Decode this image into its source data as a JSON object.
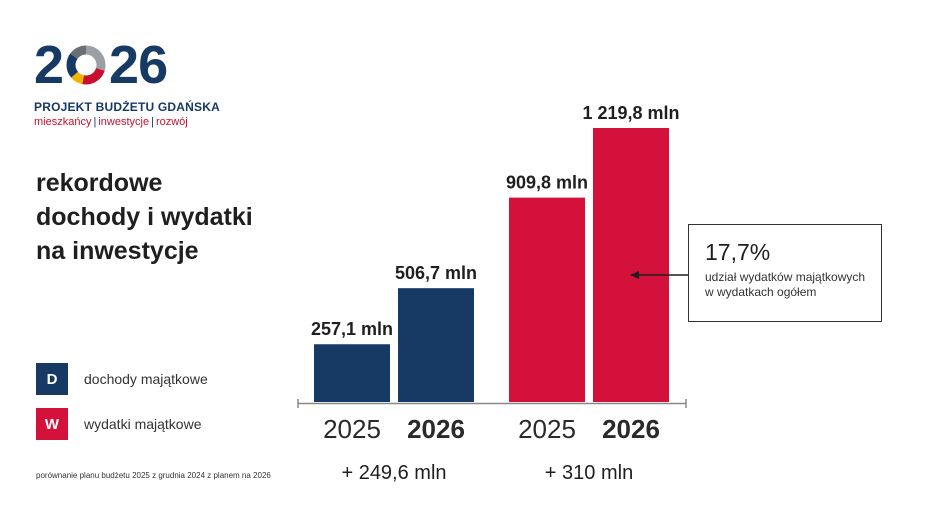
{
  "logo": {
    "digit_2a": "2",
    "digits_26": "26",
    "subtitle": "PROJEKT BUDŻETU GDAŃSKA",
    "tags": [
      "mieszkańcy",
      "inwestycje",
      "rozwój"
    ]
  },
  "headline": [
    "rekordowe",
    "dochody i wydatki",
    "na inwestycje"
  ],
  "legend": [
    {
      "letter": "D",
      "label": "dochody majątkowe",
      "color": "#163a63"
    },
    {
      "letter": "W",
      "label": "wydatki majątkowe",
      "color": "#d4113b"
    }
  ],
  "footnote": "porównanie planu budżetu 2025 z grudnia 2024 z planem na 2026",
  "callout": {
    "percent": "17,7%",
    "line1": "udział wydatków majątkowych",
    "line2": "w wydatkach ogółem"
  },
  "colors": {
    "navy": "#163a63",
    "red": "#d4113b"
  },
  "chart_data": {
    "type": "bar",
    "groups": [
      {
        "series": "dochody majątkowe",
        "color": "#163a63",
        "bars": [
          {
            "year": "2025",
            "value": 257.1,
            "label": "257,1 mln"
          },
          {
            "year": "2026",
            "value": 506.7,
            "label": "506,7 mln"
          }
        ],
        "difference": "+ 249,6 mln"
      },
      {
        "series": "wydatki majątkowe",
        "color": "#d4113b",
        "bars": [
          {
            "year": "2025",
            "value": 909.8,
            "label": "909,8 mln"
          },
          {
            "year": "2026",
            "value": 1219.8,
            "label": "1 219,8 mln"
          }
        ],
        "difference": "+ 310 mln"
      }
    ],
    "ylim": [
      0,
      1219.8
    ]
  }
}
